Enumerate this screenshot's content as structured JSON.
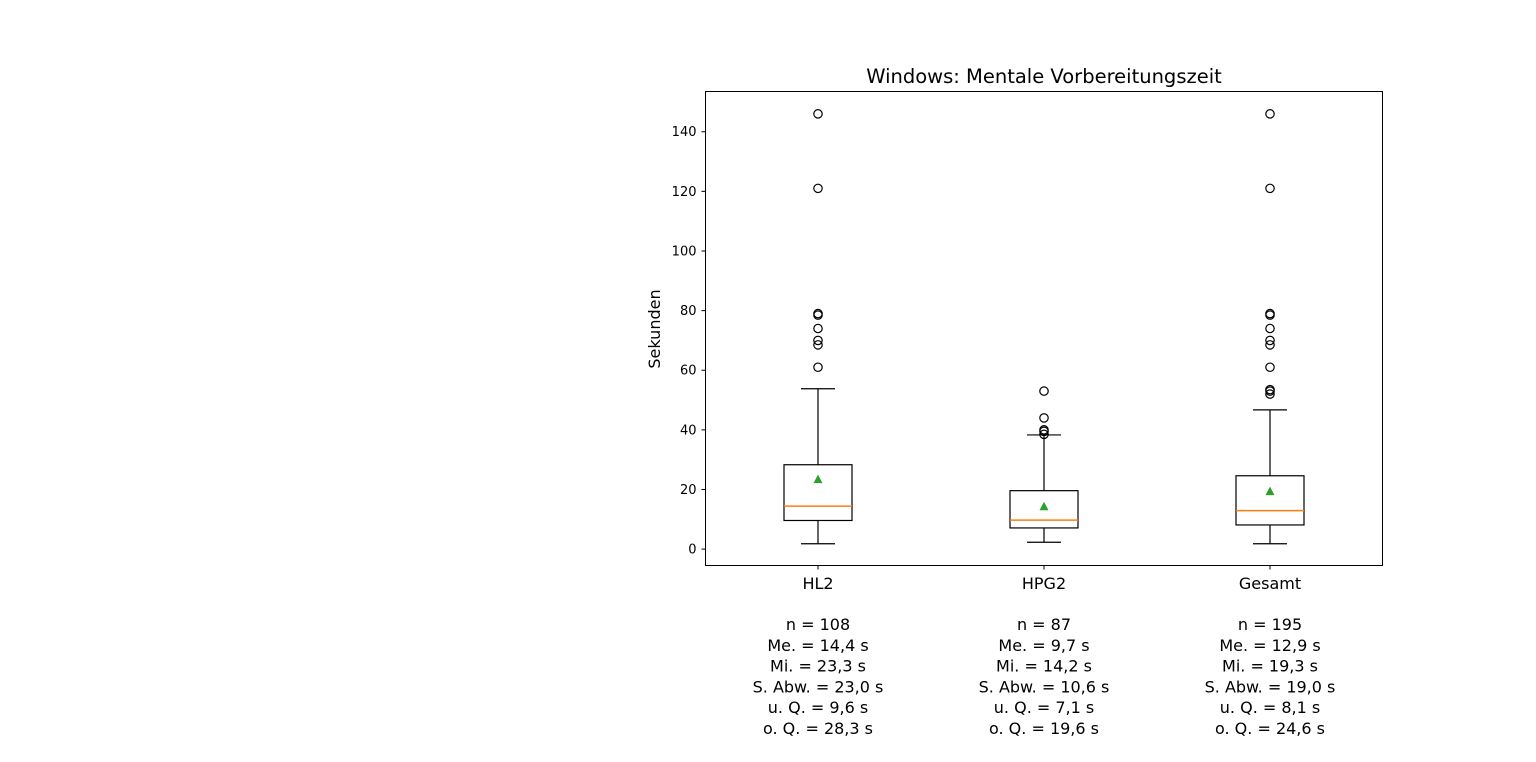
{
  "chart_data": {
    "type": "box",
    "title": "Windows: Mentale Vorbereitungszeit",
    "xlabel": "",
    "ylabel": "Sekunden",
    "ylim": [
      -5.5,
      153.5
    ],
    "yticks": [
      0,
      20,
      40,
      60,
      80,
      100,
      120,
      140
    ],
    "grid": false,
    "colors": {
      "median": "#ff7f0e",
      "mean": "#2ca02c",
      "box": "#000000"
    },
    "categories": [
      "HL2",
      "HPG2",
      "Gesamt"
    ],
    "boxes": [
      {
        "label": "HL2",
        "whisker_low": 1.8,
        "q1": 9.6,
        "median": 14.4,
        "q3": 28.3,
        "whisker_high": 53.8,
        "mean": 23.3,
        "outliers": [
          61,
          68.5,
          70,
          74,
          78.5,
          79,
          121,
          146
        ],
        "stats": [
          "n = 108",
          "Me. = 14,4 s",
          "Mi. = 23,3 s",
          "S. Abw. = 23,0 s",
          "u. Q. = 9,6 s",
          "o. Q. = 28,3 s"
        ]
      },
      {
        "label": "HPG2",
        "whisker_low": 2.3,
        "q1": 7.1,
        "median": 9.7,
        "q3": 19.6,
        "whisker_high": 38.3,
        "mean": 14.2,
        "outliers": [
          38.5,
          39.5,
          40,
          44,
          53
        ],
        "stats": [
          "n = 87",
          "Me. = 9,7 s",
          "Mi. = 14,2 s",
          "S. Abw. = 10,6 s",
          "u. Q. = 7,1 s",
          "o. Q. = 19,6 s"
        ]
      },
      {
        "label": "Gesamt",
        "whisker_low": 1.8,
        "q1": 8.1,
        "median": 12.9,
        "q3": 24.6,
        "whisker_high": 46.7,
        "mean": 19.3,
        "outliers": [
          52,
          53,
          53.5,
          61,
          68.5,
          70,
          74,
          78.5,
          79,
          121,
          146
        ],
        "stats": [
          "n = 195",
          "Me. = 12,9 s",
          "Mi. = 19,3 s",
          "S. Abw. = 19,0 s",
          "u. Q. = 8,1 s",
          "o. Q. = 24,6 s"
        ]
      }
    ]
  }
}
